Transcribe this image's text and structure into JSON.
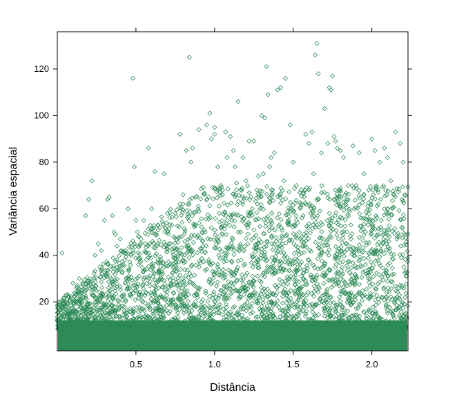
{
  "chart_data": {
    "type": "scatter",
    "title": "",
    "xlabel": "Distância",
    "ylabel": "Variância espacial",
    "xlim": [
      0.0,
      2.23
    ],
    "ylim": [
      -1,
      136
    ],
    "x_ticks": [
      0.5,
      1.0,
      1.5,
      2.0
    ],
    "x_tick_labels": [
      "0.5",
      "1.0",
      "1.5",
      "2.0"
    ],
    "y_ticks": [
      20,
      40,
      60,
      80,
      100,
      120
    ],
    "y_tick_labels": [
      "20",
      "40",
      "60",
      "80",
      "100",
      "120"
    ],
    "grid": false,
    "legend": "none",
    "marker": "open-diamond",
    "series_color": "#2E8B57",
    "dense_region_description_free": true,
    "points": {
      "x": [
        0.03,
        0.05,
        0.1,
        0.12,
        0.14,
        0.18,
        0.2,
        0.22,
        0.24,
        0.26,
        0.28,
        0.3,
        0.32,
        0.33,
        0.35,
        0.36,
        0.38,
        0.4,
        0.42,
        0.44,
        0.45,
        0.47,
        0.48,
        0.49,
        0.5,
        0.52,
        0.55,
        0.58,
        0.6,
        0.62,
        0.65,
        0.68,
        0.7,
        0.72,
        0.75,
        0.78,
        0.8,
        0.82,
        0.84,
        0.85,
        0.86,
        0.88,
        0.9,
        0.92,
        0.95,
        0.97,
        0.98,
        1.0,
        1.0,
        1.02,
        1.05,
        1.07,
        1.08,
        1.1,
        1.12,
        1.13,
        1.15,
        1.18,
        1.2,
        1.22,
        1.25,
        1.28,
        1.3,
        1.31,
        1.32,
        1.33,
        1.34,
        1.35,
        1.36,
        1.38,
        1.4,
        1.42,
        1.45,
        1.48,
        1.5,
        1.52,
        1.55,
        1.58,
        1.6,
        1.62,
        1.63,
        1.64,
        1.65,
        1.66,
        1.68,
        1.7,
        1.72,
        1.73,
        1.74,
        1.75,
        1.76,
        1.77,
        1.78,
        1.8,
        1.82,
        1.85,
        1.88,
        1.9,
        1.92,
        1.95,
        1.98,
        2.0,
        2.02,
        2.05,
        2.08,
        2.1,
        2.12,
        2.15,
        2.18,
        2.2,
        2.21,
        0.08,
        0.16,
        0.27,
        0.37,
        0.43,
        0.56,
        0.64,
        0.74,
        0.83,
        0.94,
        1.04,
        1.14,
        1.24,
        1.37,
        1.47,
        1.57,
        1.67,
        1.84,
        1.96,
        2.06,
        2.16,
        0.31,
        0.51,
        0.71,
        0.91,
        1.11,
        1.29,
        1.44,
        1.61,
        1.79,
        1.93,
        2.11,
        2.19
      ],
      "y": [
        41,
        15,
        28,
        23,
        30,
        57,
        64,
        72,
        40,
        45,
        42,
        55,
        64,
        65,
        57,
        50,
        44,
        47,
        36,
        30,
        60,
        40,
        116,
        78,
        55,
        48,
        55,
        86,
        60,
        76,
        52,
        75,
        50,
        45,
        58,
        92,
        66,
        85,
        125,
        80,
        86,
        65,
        94,
        50,
        96,
        101,
        90,
        95,
        92,
        78,
        66,
        93,
        82,
        91,
        85,
        78,
        106,
        82,
        72,
        89,
        89,
        74,
        100,
        75,
        99,
        121,
        109,
        78,
        82,
        84,
        111,
        112,
        116,
        96,
        80,
        70,
        62,
        92,
        88,
        93,
        75,
        126,
        131,
        118,
        84,
        103,
        88,
        112,
        111,
        117,
        91,
        89,
        86,
        85,
        82,
        70,
        87,
        70,
        84,
        75,
        68,
        90,
        85,
        80,
        86,
        82,
        72,
        93,
        88,
        80,
        66,
        13,
        20,
        35,
        49,
        38,
        45,
        53,
        48,
        62,
        50,
        70,
        71,
        60,
        68,
        55,
        65,
        59,
        64,
        50,
        55,
        47,
        32,
        50,
        45,
        43,
        55,
        60,
        72,
        58,
        62,
        56,
        48,
        52
      ],
      "dense_fill": [
        0,
        12
      ]
    }
  }
}
